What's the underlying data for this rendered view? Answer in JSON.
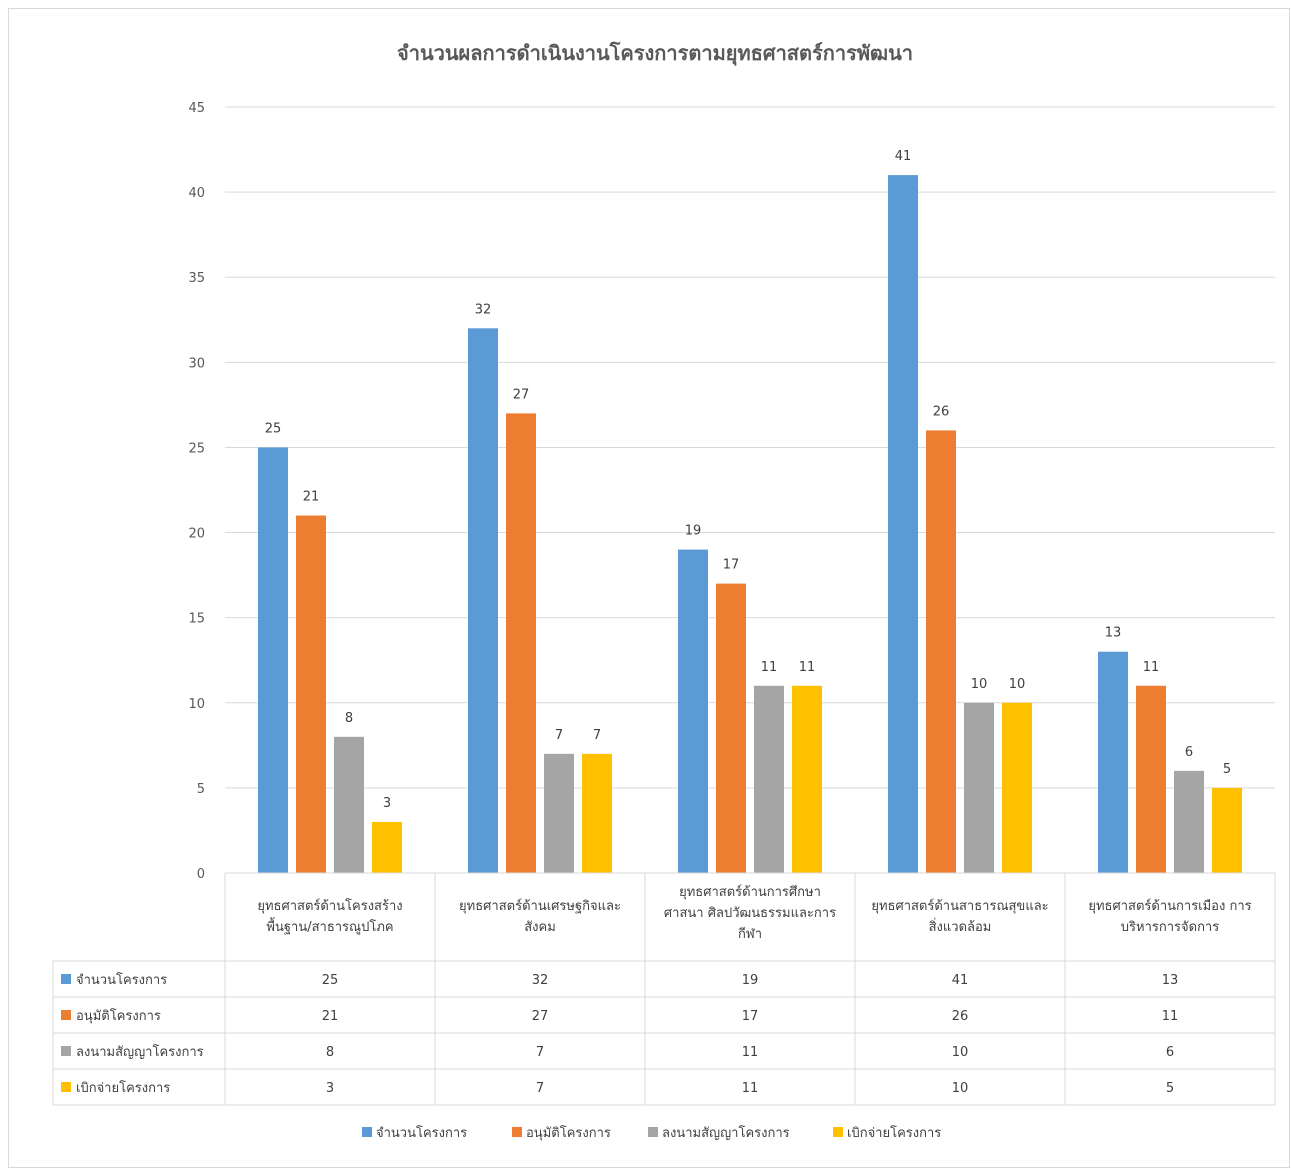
{
  "chart_data": {
    "type": "bar",
    "title": "จำนวนผลการดำเนินงานโครงการตามยุทธศาสตร์การพัฒนา",
    "xlabel": "",
    "ylabel": "",
    "ylim": [
      0,
      45
    ],
    "yticks": [
      0,
      5,
      10,
      15,
      20,
      25,
      30,
      35,
      40,
      45
    ],
    "grid": true,
    "legend": "bottom",
    "data_table": true,
    "categories": [
      [
        "ยุทธศาสตร์ด้านโครงสร้าง",
        "พื้นฐาน/สาธารณูปโภค"
      ],
      [
        "ยุทธศาสตร์ด้านเศรษฐกิจและ",
        "สังคม"
      ],
      [
        "ยุทธศาสตร์ด้านการศึกษา",
        "ศาสนา ศิลปวัฒนธรรมและการ",
        "กีฬา"
      ],
      [
        "ยุทธศาสตร์ด้านสาธารณสุขและ",
        "สิ่งแวดล้อม"
      ],
      [
        "ยุทธศาสตร์ด้านการเมือง การ",
        "บริหารการจัดการ"
      ]
    ],
    "series": [
      {
        "name": "จำนวนโครงการ",
        "color": "#5B9BD5",
        "values": [
          25,
          32,
          19,
          41,
          13
        ]
      },
      {
        "name": "อนุมัติโครงการ",
        "color": "#ED7D31",
        "values": [
          21,
          27,
          17,
          26,
          11
        ]
      },
      {
        "name": "ลงนามสัญญาโครงการ",
        "color": "#A5A5A5",
        "values": [
          8,
          7,
          11,
          10,
          6
        ]
      },
      {
        "name": "เบิกจ่ายโครงการ",
        "color": "#FFC000",
        "values": [
          3,
          7,
          11,
          10,
          5
        ]
      }
    ]
  }
}
